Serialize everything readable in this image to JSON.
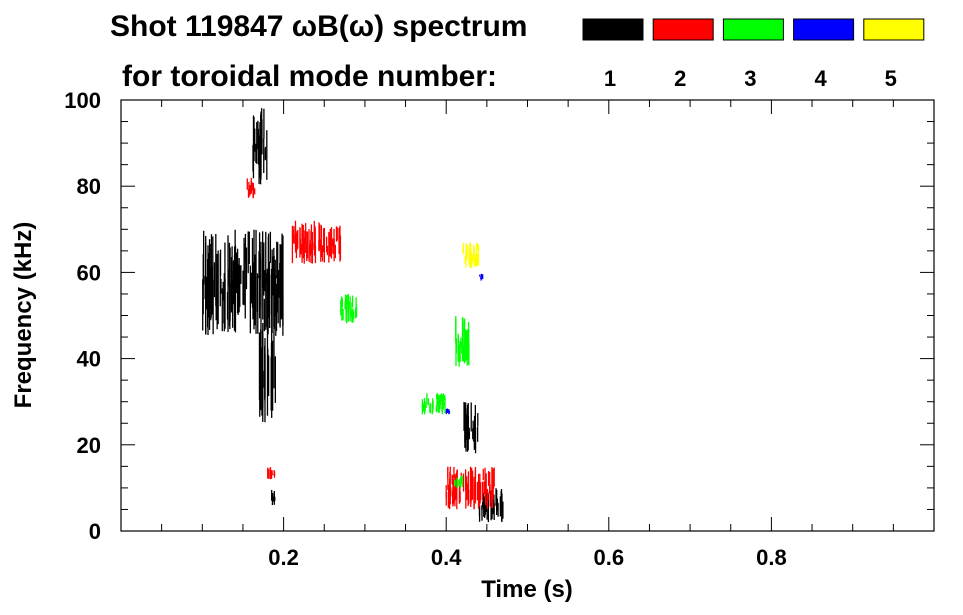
{
  "chart_data": {
    "type": "spectrogram",
    "title_line1": "Shot 119847 ωB(ω) spectrum",
    "title_line2": "for toroidal mode number:",
    "xlabel": "Time (s)",
    "ylabel": "Frequency (kHz)",
    "xlim": [
      0.0,
      1.0
    ],
    "ylim": [
      0,
      100
    ],
    "x_ticks": [
      0.2,
      0.4,
      0.6,
      0.8
    ],
    "x_tick_labels": [
      "0.2",
      "0.4",
      "0.6",
      "0.8"
    ],
    "y_ticks": [
      0,
      20,
      40,
      60,
      80,
      100
    ],
    "y_tick_labels": [
      "0",
      "20",
      "40",
      "60",
      "80",
      "100"
    ],
    "legend": [
      {
        "mode": "1",
        "color": "#000000"
      },
      {
        "mode": "2",
        "color": "#ff0000"
      },
      {
        "mode": "3",
        "color": "#00ff00"
      },
      {
        "mode": "4",
        "color": "#0000ff"
      },
      {
        "mode": "5",
        "color": "#ffff00"
      }
    ],
    "series": [
      {
        "name": "mode 1",
        "color": "#000000",
        "regions": [
          {
            "t": [
              0.1,
              0.2
            ],
            "f": [
              45,
              70
            ]
          },
          {
            "t": [
              0.17,
              0.19
            ],
            "f": [
              25,
              55
            ]
          },
          {
            "t": [
              0.16,
              0.18
            ],
            "f": [
              80,
              100
            ]
          },
          {
            "t": [
              0.185,
              0.19
            ],
            "f": [
              6,
              10
            ]
          },
          {
            "t": [
              0.42,
              0.44
            ],
            "f": [
              18,
              30
            ]
          },
          {
            "t": [
              0.44,
              0.47
            ],
            "f": [
              2,
              10
            ]
          }
        ]
      },
      {
        "name": "mode 2",
        "color": "#ff0000",
        "regions": [
          {
            "t": [
              0.155,
              0.165
            ],
            "f": [
              77,
              82
            ]
          },
          {
            "t": [
              0.21,
              0.27
            ],
            "f": [
              62,
              72
            ]
          },
          {
            "t": [
              0.18,
              0.19
            ],
            "f": [
              12,
              15
            ]
          },
          {
            "t": [
              0.4,
              0.46
            ],
            "f": [
              5,
              15
            ]
          }
        ]
      },
      {
        "name": "mode 3",
        "color": "#00ff00",
        "regions": [
          {
            "t": [
              0.27,
              0.29
            ],
            "f": [
              48,
              55
            ]
          },
          {
            "t": [
              0.41,
              0.43
            ],
            "f": [
              38,
              50
            ]
          },
          {
            "t": [
              0.37,
              0.4
            ],
            "f": [
              27,
              32
            ]
          },
          {
            "t": [
              0.41,
              0.42
            ],
            "f": [
              10,
              13
            ]
          }
        ]
      },
      {
        "name": "mode 4",
        "color": "#0000ff",
        "regions": [
          {
            "t": [
              0.44,
              0.445
            ],
            "f": [
              58,
              60
            ]
          },
          {
            "t": [
              0.4,
              0.405
            ],
            "f": [
              27,
              29
            ]
          }
        ]
      },
      {
        "name": "mode 5",
        "color": "#ffff00",
        "regions": [
          {
            "t": [
              0.42,
              0.44
            ],
            "f": [
              61,
              67
            ]
          }
        ]
      }
    ]
  }
}
